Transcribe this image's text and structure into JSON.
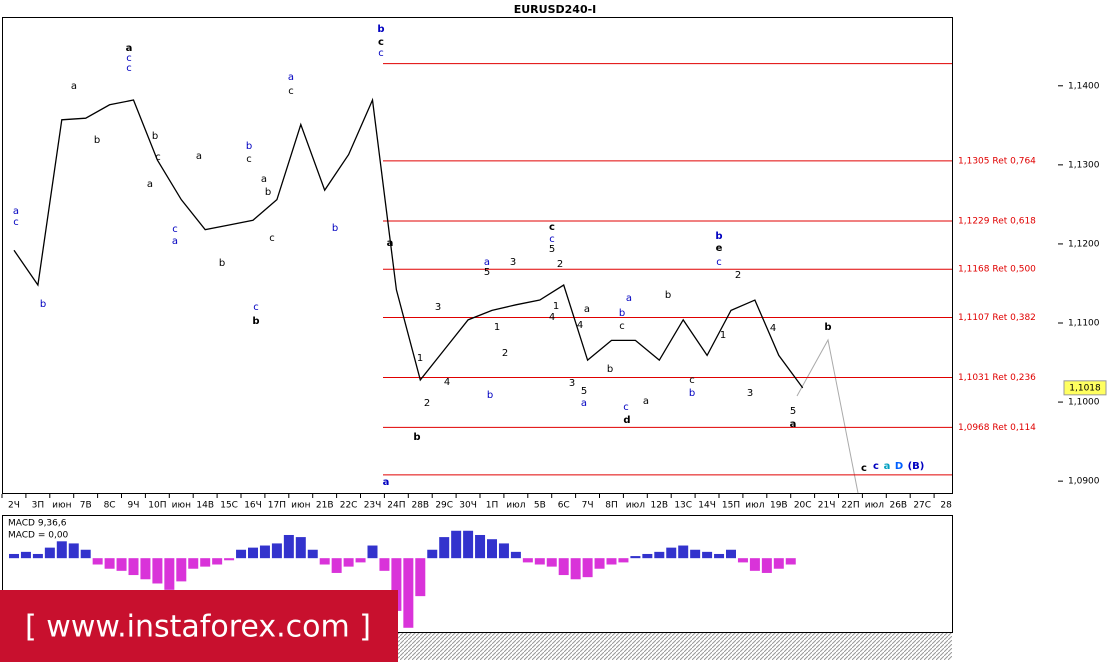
{
  "chart_data": [
    {
      "type": "line",
      "title": "EURUSD240-I",
      "color": "#000000",
      "categories": [
        "2Ч",
        "3П",
        "июн",
        "7В",
        "8С",
        "9Ч",
        "10П",
        "июн",
        "14В",
        "15С",
        "16Ч",
        "17П",
        "июн",
        "21В",
        "22С",
        "23Ч",
        "24П",
        "28В",
        "29С",
        "30Ч",
        "1П",
        "июл",
        "5В",
        "6С",
        "7Ч",
        "8П",
        "июл",
        "12В",
        "13С",
        "14Ч",
        "15П",
        "июл",
        "19В",
        "20С",
        "21Ч",
        "22П",
        "июл",
        "26В",
        "27С",
        "28"
      ],
      "values": [
        1.1192,
        1.1148,
        1.1357,
        1.1359,
        1.1376,
        1.1382,
        1.1306,
        1.1256,
        1.1218,
        1.1224,
        1.123,
        1.1256,
        1.1351,
        1.1268,
        1.1313,
        1.1382,
        1.1142,
        1.1028,
        1.1066,
        1.1104,
        1.1116,
        1.1123,
        1.1129,
        1.1148,
        1.1053,
        1.1078,
        1.1078,
        1.1053,
        1.1104,
        1.1059,
        1.1116,
        1.1129,
        1.1059,
        1.1018,
        null,
        null,
        null,
        null,
        null,
        null
      ],
      "ylim": [
        1.0885,
        1.1487
      ],
      "yticks": [
        {
          "value": 1.09,
          "label": "1,0900"
        },
        {
          "value": 1.1,
          "label": "1,1000"
        },
        {
          "value": 1.11,
          "label": "1,1100"
        },
        {
          "value": 1.12,
          "label": "1,1200"
        },
        {
          "value": 1.13,
          "label": "1,1300"
        },
        {
          "value": 1.14,
          "label": "1,1400"
        }
      ],
      "last_price": {
        "value": 1.1018,
        "label": "1,1018"
      },
      "level_color": "#e00000",
      "levels": [
        {
          "value": 1.1305,
          "label": "1,1305 Ret 0,764"
        },
        {
          "value": 1.1229,
          "label": "1,1229 Ret 0,618"
        },
        {
          "value": 1.1168,
          "label": "1,1168 Ret 0,500"
        },
        {
          "value": 1.1107,
          "label": "1,1107 Ret 0,382"
        },
        {
          "value": 1.1031,
          "label": "1,1031 Ret 0,236"
        },
        {
          "value": 1.0968,
          "label": "1,0968 Ret 0,114"
        }
      ],
      "range_lines": [
        1.1428,
        1.0908
      ],
      "annotations": [
        {
          "text": "a",
          "color": "#0000c0"
        },
        {
          "text": "c",
          "color": "#0000c0"
        },
        {
          "text": "b",
          "color": "#0000c0"
        },
        {
          "text": "a",
          "color": "#000"
        },
        {
          "text": "b",
          "color": "#000"
        },
        {
          "text": "a",
          "color": "#000",
          "bold": true
        },
        {
          "text": "c",
          "color": "#0000c0"
        },
        {
          "text": "c",
          "color": "#0000c0"
        },
        {
          "text": "b",
          "color": "#000"
        },
        {
          "text": "a",
          "color": "#000"
        },
        {
          "text": "c",
          "color": "#000"
        },
        {
          "text": "a",
          "color": "#000"
        },
        {
          "text": "c",
          "color": "#0000c0"
        },
        {
          "text": "a",
          "color": "#0000c0"
        },
        {
          "text": "b",
          "color": "#000"
        },
        {
          "text": "b",
          "color": "#0000c0"
        },
        {
          "text": "c",
          "color": "#000"
        },
        {
          "text": "a",
          "color": "#000"
        },
        {
          "text": "c",
          "color": "#000"
        },
        {
          "text": "c",
          "color": "#0000c0"
        },
        {
          "text": "b",
          "color": "#000",
          "bold": true
        },
        {
          "text": "b",
          "color": "#000"
        },
        {
          "text": "a",
          "color": "#0000c0"
        },
        {
          "text": "c",
          "color": "#000"
        },
        {
          "text": "b",
          "color": "#0000c0"
        },
        {
          "text": "b",
          "color": "#0000c0",
          "bold": true
        },
        {
          "text": "c",
          "color": "#000",
          "bold": true
        },
        {
          "text": "c",
          "color": "#0000c0"
        },
        {
          "text": "a",
          "color": "#000",
          "bold": true
        },
        {
          "text": "a",
          "color": "#0000c0",
          "bold": true
        },
        {
          "text": "b",
          "color": "#000",
          "bold": true
        },
        {
          "text": "1",
          "color": "#000"
        },
        {
          "text": "2",
          "color": "#000"
        },
        {
          "text": "3",
          "color": "#000"
        },
        {
          "text": "4",
          "color": "#000"
        },
        {
          "text": "5",
          "color": "#000"
        },
        {
          "text": "a",
          "color": "#0000c0"
        },
        {
          "text": "b",
          "color": "#0000c0"
        },
        {
          "text": "1",
          "color": "#000"
        },
        {
          "text": "2",
          "color": "#000"
        },
        {
          "text": "3",
          "color": "#000"
        },
        {
          "text": "c",
          "color": "#000",
          "bold": true
        },
        {
          "text": "c",
          "color": "#0000c0"
        },
        {
          "text": "5",
          "color": "#000"
        },
        {
          "text": "2",
          "color": "#000"
        },
        {
          "text": "1",
          "color": "#000"
        },
        {
          "text": "4",
          "color": "#000"
        },
        {
          "text": "3",
          "color": "#000"
        },
        {
          "text": "5",
          "color": "#000"
        },
        {
          "text": "a",
          "color": "#0000c0"
        },
        {
          "text": "4",
          "color": "#000"
        },
        {
          "text": "a",
          "color": "#000"
        },
        {
          "text": "b",
          "color": "#000"
        },
        {
          "text": "b",
          "color": "#0000c0"
        },
        {
          "text": "c",
          "color": "#000"
        },
        {
          "text": "a",
          "color": "#0000c0"
        },
        {
          "text": "c",
          "color": "#0000c0"
        },
        {
          "text": "d",
          "color": "#000",
          "bold": true
        },
        {
          "text": "a",
          "color": "#000"
        },
        {
          "text": "b",
          "color": "#000"
        },
        {
          "text": "c",
          "color": "#000"
        },
        {
          "text": "b",
          "color": "#0000c0"
        },
        {
          "text": "b",
          "color": "#0000c0",
          "bold": true
        },
        {
          "text": "e",
          "color": "#000",
          "bold": true
        },
        {
          "text": "c",
          "color": "#0000c0"
        },
        {
          "text": "2",
          "color": "#000"
        },
        {
          "text": "1",
          "color": "#000"
        },
        {
          "text": "4",
          "color": "#000"
        },
        {
          "text": "3",
          "color": "#000"
        },
        {
          "text": "5",
          "color": "#000"
        },
        {
          "text": "a",
          "color": "#000",
          "bold": true
        },
        {
          "text": "b",
          "color": "#000",
          "bold": true
        },
        {
          "text": "c",
          "color": "#000",
          "bold": true
        },
        {
          "text": "c",
          "color": "#0000c0",
          "bold": true
        },
        {
          "text": "a",
          "color": "#00a0c0",
          "bold": true
        },
        {
          "text": "D",
          "color": "#0060ff",
          "bold": true
        },
        {
          "text": "(B)",
          "color": "#0000c0",
          "bold": true
        }
      ]
    },
    {
      "type": "bar",
      "label": "MACD 9,36,6",
      "value_label": "MACD = 0,00",
      "pos_color": "#0000c0",
      "neg_color": "#d000d0",
      "ylim": [
        -0.0035,
        0.002
      ],
      "values": [
        0.0002,
        0.0003,
        0.0002,
        0.0005,
        0.0008,
        0.0007,
        0.0004,
        -0.0003,
        -0.0005,
        -0.0006,
        -0.0008,
        -0.001,
        -0.0012,
        -0.0015,
        -0.0011,
        -0.0005,
        -0.0004,
        -0.0003,
        -0.0001,
        0.0004,
        0.0005,
        0.0006,
        0.0007,
        0.0011,
        0.001,
        0.0004,
        -0.0003,
        -0.0007,
        -0.0004,
        -0.0002,
        0.0006,
        -0.0006,
        -0.0025,
        -0.0033,
        -0.0018,
        0.0004,
        0.001,
        0.0013,
        0.0013,
        0.0011,
        0.0009,
        0.0007,
        0.0003,
        -0.0002,
        -0.0003,
        -0.0004,
        -0.0008,
        -0.001,
        -0.0009,
        -0.0005,
        -0.0003,
        -0.0002,
        0.0001,
        0.0002,
        0.0003,
        0.0005,
        0.0006,
        0.0004,
        0.0003,
        0.0002,
        0.0004,
        -0.0002,
        -0.0006,
        -0.0007,
        -0.0005,
        -0.0003
      ]
    }
  ],
  "watermark": "[  www.instaforex.com ]"
}
